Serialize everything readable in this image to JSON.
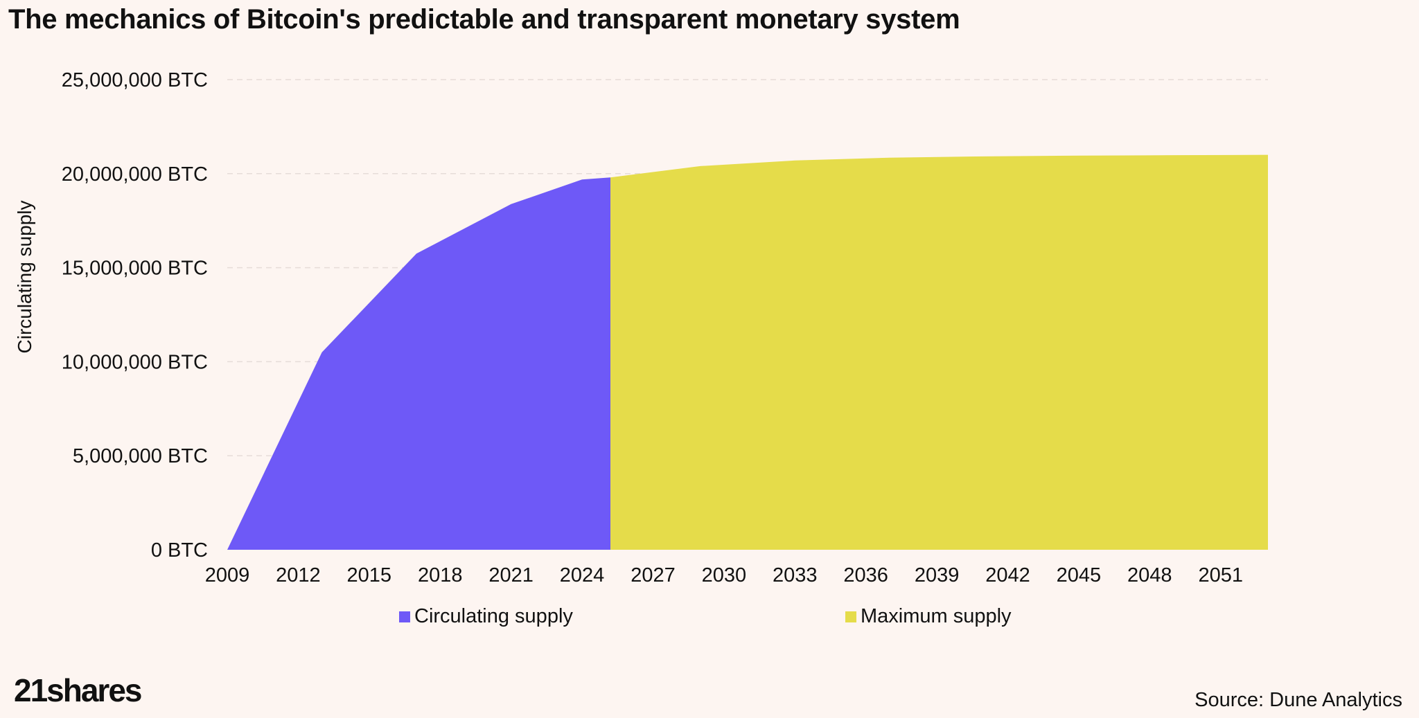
{
  "title": "The mechanics of Bitcoin's predictable and transparent monetary system",
  "logo": "21shares",
  "source": "Source: Dune Analytics",
  "colors": {
    "background": "#fdf5f1",
    "circulating": "#6e59f7",
    "maximum": "#e5dc4a",
    "grid": "#e6dcd8"
  },
  "chart_data": {
    "type": "area",
    "title": "The mechanics of Bitcoin's predictable and transparent monetary system",
    "xlabel": "",
    "ylabel": "Circulating supply",
    "xlim": [
      2009,
      2053
    ],
    "ylim": [
      0,
      25000000
    ],
    "grid": true,
    "legend_position": "bottom",
    "x_ticks": [
      "2009",
      "2012",
      "2015",
      "2018",
      "2021",
      "2024",
      "2027",
      "2030",
      "2033",
      "2036",
      "2039",
      "2042",
      "2045",
      "2048",
      "2051"
    ],
    "y_ticks": [
      {
        "value": 0,
        "label": "0 BTC"
      },
      {
        "value": 5000000,
        "label": "5,000,000 BTC"
      },
      {
        "value": 10000000,
        "label": "10,000,000 BTC"
      },
      {
        "value": 15000000,
        "label": "15,000,000 BTC"
      },
      {
        "value": 20000000,
        "label": "20,000,000 BTC"
      },
      {
        "value": 25000000,
        "label": "25,000,000 BTC"
      }
    ],
    "series": [
      {
        "name": "Circulating supply",
        "color": "#6e59f7",
        "points": [
          [
            2009,
            0
          ],
          [
            2013,
            10500000
          ],
          [
            2017,
            15750000
          ],
          [
            2021,
            18380000
          ],
          [
            2024,
            19690000
          ],
          [
            2025.2,
            19800000
          ]
        ]
      },
      {
        "name": "Maximum supply",
        "color": "#e5dc4a",
        "points": [
          [
            2025.2,
            19800000
          ],
          [
            2029,
            20400000
          ],
          [
            2033,
            20700000
          ],
          [
            2037,
            20850000
          ],
          [
            2041,
            20920000
          ],
          [
            2045,
            20960000
          ],
          [
            2049,
            20980000
          ],
          [
            2053,
            21000000
          ]
        ]
      }
    ]
  }
}
